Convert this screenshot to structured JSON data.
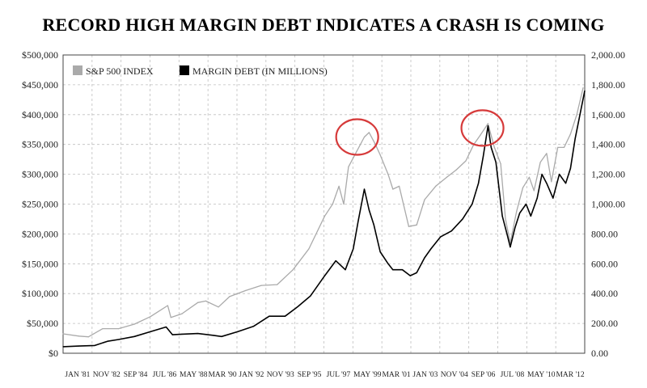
{
  "chart_data": {
    "type": "line",
    "title": "RECORD HIGH MARGIN DEBT INDICATES A CRASH IS COMING",
    "grid": true,
    "legend_position": "top-left",
    "x_tick_labels": [
      "JAN '81",
      "NOV '82",
      "SEP '84",
      "JUL '86",
      "MAY '88",
      "MAR '90",
      "JAN '92",
      "NOV '93",
      "SEP '95",
      "JUL '97",
      "MAY '99",
      "MAR '01",
      "JAN '03",
      "NOV '04",
      "SEP '06",
      "JUL '08",
      "MAY '10",
      "MAR '12"
    ],
    "x_tick_display": [
      "JAN '81",
      "NOV '82",
      "SEP '84",
      "JUL '86",
      "MAY '88",
      "MAR '90",
      "JAN '92",
      "NOV '93",
      "SEP '95",
      "JUL '97",
      "MAY '99",
      "MAR '01",
      "JAN '03",
      "NOV '04",
      "SEP '06",
      "JUL '08",
      "MAY '10",
      "MAR '12"
    ],
    "xlim": [
      1981.0,
      2013.9
    ],
    "y_left": {
      "ylim": [
        0,
        500000
      ],
      "tick_values": [
        0,
        50000,
        100000,
        150000,
        200000,
        250000,
        300000,
        350000,
        400000,
        450000,
        500000
      ],
      "tick_labels": [
        "$0",
        "$50,000",
        "$100,000",
        "$150,000",
        "$200,000",
        "$250,000",
        "$300,000",
        "$350,000",
        "$400,000",
        "$450,000",
        "$500,000"
      ]
    },
    "y_right": {
      "ylim": [
        0,
        2000
      ],
      "tick_values": [
        0,
        200,
        400,
        600,
        800,
        1000,
        1200,
        1400,
        1600,
        1800,
        2000
      ],
      "tick_labels": [
        "0.00",
        "200.00",
        "400.00",
        "600.00",
        "800.00",
        "1,000.00",
        "1,200.00",
        "1,400.00",
        "1,600.00",
        "1,800.00",
        "2,000.00"
      ]
    },
    "series": [
      {
        "name": "S&P 500 INDEX",
        "axis": "right",
        "color": "#aaaaaa",
        "x": [
          1981.0,
          1982.0,
          1982.6,
          1983.5,
          1984.5,
          1985.5,
          1986.5,
          1987.6,
          1987.8,
          1988.5,
          1989.5,
          1990.0,
          1990.8,
          1991.5,
          1992.5,
          1993.5,
          1994.5,
          1995.5,
          1996.5,
          1997.5,
          1998.0,
          1998.4,
          1998.7,
          1999.0,
          1999.5,
          2000.0,
          2000.3,
          2000.7,
          2001.0,
          2001.5,
          2001.8,
          2002.2,
          2002.8,
          2003.3,
          2003.8,
          2004.5,
          2005.2,
          2005.8,
          2006.4,
          2006.9,
          2007.3,
          2007.8,
          2008.2,
          2008.6,
          2008.9,
          2009.2,
          2009.6,
          2010.0,
          2010.4,
          2010.7,
          2011.1,
          2011.5,
          2011.8,
          2012.2,
          2012.6,
          2013.0,
          2013.4,
          2013.8
        ],
        "values": [
          130,
          115,
          110,
          165,
          165,
          195,
          245,
          320,
          240,
          265,
          340,
          350,
          310,
          380,
          420,
          455,
          460,
          560,
          700,
          920,
          1000,
          1120,
          1000,
          1250,
          1350,
          1450,
          1480,
          1400,
          1330,
          1200,
          1100,
          1120,
          850,
          860,
          1030,
          1120,
          1180,
          1230,
          1290,
          1400,
          1460,
          1540,
          1380,
          1270,
          900,
          740,
          950,
          1110,
          1180,
          1090,
          1280,
          1340,
          1150,
          1380,
          1380,
          1470,
          1600,
          1780
        ]
      },
      {
        "name": "MARGIN DEBT (IN MILLIONS)",
        "axis": "left",
        "color": "#000000",
        "x": [
          1981.0,
          1982.0,
          1983.0,
          1983.8,
          1984.5,
          1985.5,
          1986.5,
          1987.5,
          1987.9,
          1988.5,
          1989.5,
          1990.5,
          1991.0,
          1992.0,
          1993.0,
          1994.0,
          1995.0,
          1995.8,
          1996.6,
          1997.5,
          1998.2,
          1998.8,
          1999.3,
          1999.6,
          2000.0,
          2000.3,
          2000.6,
          2001.0,
          2001.5,
          2001.8,
          2002.4,
          2002.9,
          2003.3,
          2003.8,
          2004.2,
          2004.8,
          2005.5,
          2006.2,
          2006.8,
          2007.2,
          2007.5,
          2007.8,
          2008.0,
          2008.3,
          2008.7,
          2009.0,
          2009.2,
          2009.5,
          2009.8,
          2010.2,
          2010.5,
          2010.9,
          2011.2,
          2011.5,
          2011.9,
          2012.3,
          2012.7,
          2013.0,
          2013.3,
          2013.6,
          2013.9
        ],
        "values": [
          11000,
          12000,
          13000,
          20000,
          23000,
          28000,
          36000,
          44000,
          31000,
          32000,
          33000,
          30000,
          28000,
          36000,
          45000,
          62000,
          62000,
          78000,
          96000,
          130000,
          155000,
          140000,
          175000,
          220000,
          275000,
          240000,
          215000,
          170000,
          150000,
          140000,
          140000,
          130000,
          135000,
          160000,
          175000,
          195000,
          205000,
          225000,
          250000,
          285000,
          330000,
          381000,
          345000,
          320000,
          230000,
          200000,
          178000,
          210000,
          235000,
          250000,
          230000,
          260000,
          300000,
          285000,
          260000,
          300000,
          285000,
          310000,
          360000,
          400000,
          440000
        ]
      }
    ],
    "annotations": [
      {
        "type": "circle",
        "color": "#d63a3a",
        "x_center": 1999.55,
        "value_center": 1450,
        "axis": "right"
      },
      {
        "type": "circle",
        "color": "#d63a3a",
        "x_center": 2007.45,
        "value_center": 1510,
        "axis": "right"
      }
    ]
  }
}
